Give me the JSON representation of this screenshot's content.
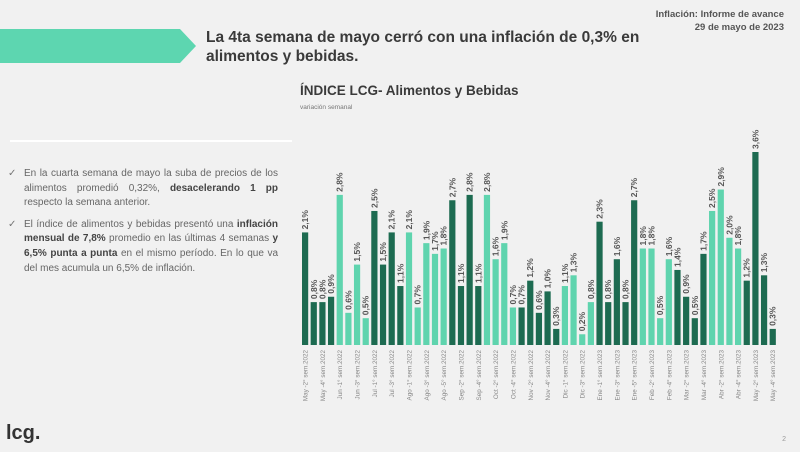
{
  "header": {
    "headline": "La 4ta semana de mayo cerró con una inflación de 0,3% en alimentos y bebidas.",
    "report_title": "Inflación: Informe de avance",
    "report_date": "29 de mayo de 2023",
    "banner_color": "#5dd6b0"
  },
  "bullets": [
    {
      "icon": "check-icon",
      "parts": [
        {
          "text": "En la cuarta semana de mayo la suba de precios de los alimentos promedió 0,32%, ",
          "bold": false
        },
        {
          "text": "desacelerando 1 pp",
          "bold": true
        },
        {
          "text": " respecto la semana anterior.",
          "bold": false
        }
      ]
    },
    {
      "icon": "check-icon",
      "parts": [
        {
          "text": "El índice de alimentos y bebidas presentó una ",
          "bold": false
        },
        {
          "text": "inflación mensual de 7,8%",
          "bold": true
        },
        {
          "text": " promedio en las últimas 4 semanas ",
          "bold": false
        },
        {
          "text": "y 6,5% punta a punta",
          "bold": true
        },
        {
          "text": " en el mismo período. En lo que va del mes acumula un 6,5% de inflación.",
          "bold": false
        }
      ]
    }
  ],
  "footer": {
    "logo": "lcg.",
    "page": "2"
  },
  "chart_data": {
    "type": "bar",
    "title": "ÍNDICE LCG- Alimentos y Bebidas",
    "subtitle": "variación semanal",
    "unit": "%",
    "grid": false,
    "legend": "none",
    "ylim": [
      0,
      3.6
    ],
    "colors": {
      "dark": "#1d6b51",
      "light": "#5fd4ae"
    },
    "categories": [
      "May -2° sem.2022",
      "",
      "May -4° sem.2022",
      "",
      "Jun -1° sem.2022",
      "",
      "Jun -3° sem.2022",
      "",
      "Jul -1° sem.2022",
      "",
      "Jul -3° sem.2022",
      "",
      "Ago -1° sem.2022",
      "",
      "Ago -3° sem.2022",
      "",
      "Ago -5° sem.2022",
      "",
      "Sep -2° sem.2022",
      "",
      "Sep -4° sem.2022",
      "",
      "Oct -2° sem.2022",
      "",
      "Oct -4° sem.2022",
      "",
      "Nov -2° sem.2022",
      "",
      "Nov -4° sem.2022",
      "",
      "Dic -1° sem.2022",
      "",
      "Dic -3° sem.2022",
      "",
      "Ene -1° sem.2023",
      "",
      "Ene -3° sem.2023",
      "",
      "Ene -5° sem.2023",
      "",
      "Feb -2° sem.2023",
      "",
      "Feb -4° sem.2023",
      "",
      "Mar -2° sem.2023",
      "",
      "Mar -4° sem.2023",
      "",
      "Abr -2° sem.2023",
      "",
      "Abr -4° sem.2023",
      "",
      "May -2° sem.2023",
      "",
      "May -4° sem.2023"
    ],
    "values": [
      2.1,
      0.8,
      0.8,
      0.9,
      2.8,
      0.6,
      1.5,
      0.5,
      2.5,
      1.5,
      2.1,
      1.1,
      2.1,
      0.7,
      1.9,
      1.7,
      1.8,
      2.7,
      1.1,
      2.8,
      1.1,
      2.8,
      1.6,
      1.9,
      0.7,
      0.7,
      1.2,
      0.6,
      1.0,
      0.3,
      1.1,
      1.3,
      0.2,
      0.8,
      2.3,
      0.8,
      1.6,
      0.8,
      2.7,
      1.8,
      1.8,
      0.5,
      1.6,
      1.4,
      0.9,
      0.5,
      1.7,
      2.5,
      2.9,
      2.0,
      1.8,
      1.2,
      3.6,
      1.3,
      0.3
    ],
    "bar_shade": [
      "dark",
      "dark",
      "dark",
      "dark",
      "light",
      "light",
      "light",
      "light",
      "dark",
      "dark",
      "dark",
      "dark",
      "light",
      "light",
      "light",
      "light",
      "light",
      "dark",
      "dark",
      "dark",
      "dark",
      "light",
      "light",
      "light",
      "light",
      "dark",
      "dark",
      "dark",
      "dark",
      "dark",
      "light",
      "light",
      "light",
      "light",
      "dark",
      "dark",
      "dark",
      "dark",
      "dark",
      "light",
      "light",
      "light",
      "light",
      "dark",
      "dark",
      "dark",
      "dark",
      "light",
      "light",
      "light",
      "light",
      "dark",
      "dark",
      "dark",
      "dark"
    ]
  }
}
